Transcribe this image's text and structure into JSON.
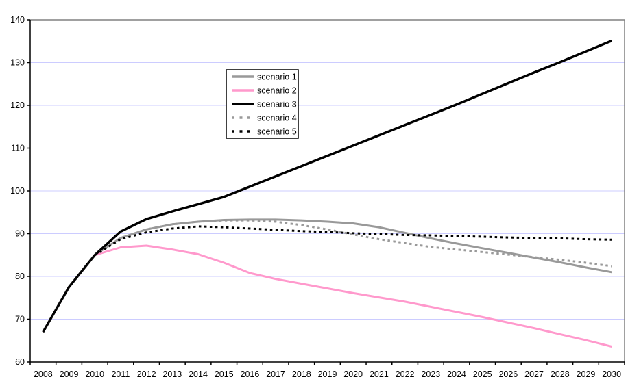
{
  "chart_data": {
    "type": "line",
    "title": "",
    "xlabel": "",
    "ylabel": "",
    "x_labels": [
      "2008",
      "2009",
      "2010",
      "2011",
      "2012",
      "2013",
      "2014",
      "2015",
      "2016",
      "2017",
      "2018",
      "2019",
      "2020",
      "2021",
      "2022",
      "2023",
      "2024",
      "2025",
      "2026",
      "2027",
      "2028",
      "2029",
      "2030"
    ],
    "ylim": [
      60,
      140
    ],
    "ytick_step": 10,
    "grid": "horizontal-only",
    "legend_position": "upper-left-center",
    "series": [
      {
        "name": "scenario 1",
        "color": "#999999",
        "style": "solid",
        "width": 3,
        "values": [
          67,
          77.5,
          85,
          89,
          91,
          92.2,
          92.8,
          93.2,
          93.3,
          93.3,
          93.1,
          92.8,
          92.4,
          91.5,
          90.2,
          88.9,
          87.7,
          86.6,
          85.5,
          84.4,
          83.3,
          82.1,
          81
        ]
      },
      {
        "name": "scenario 2",
        "color": "#ff99cc",
        "style": "solid",
        "width": 3,
        "values": [
          67,
          77.5,
          85,
          86.8,
          87.2,
          86.3,
          85.2,
          83.2,
          80.8,
          79.4,
          78.3,
          77.2,
          76.1,
          75.1,
          74.1,
          72.9,
          71.7,
          70.5,
          69.2,
          67.9,
          66.5,
          65.1,
          63.6
        ]
      },
      {
        "name": "scenario 3",
        "color": "#000000",
        "style": "solid",
        "width": 3.5,
        "values": [
          67,
          77.5,
          85,
          90.5,
          93.4,
          95.2,
          96.9,
          98.6,
          101,
          103.4,
          105.8,
          108.2,
          110.6,
          113,
          115.4,
          117.8,
          120.2,
          122.7,
          125.2,
          127.7,
          130.1,
          132.6,
          135.1
        ]
      },
      {
        "name": "scenario 4",
        "color": "#999999",
        "style": "dotted",
        "width": 3,
        "values": [
          67,
          77.5,
          85,
          89,
          91,
          92.2,
          92.8,
          93.1,
          93.1,
          92.8,
          92,
          91,
          89.8,
          88.7,
          87.8,
          86.9,
          86.3,
          85.7,
          85.1,
          84.5,
          83.9,
          83.2,
          82.4
        ]
      },
      {
        "name": "scenario 5",
        "color": "#000000",
        "style": "dotted",
        "width": 3,
        "values": [
          67,
          77.5,
          85,
          88.7,
          90.3,
          91.2,
          91.7,
          91.5,
          91.2,
          90.9,
          90.6,
          90.4,
          90.1,
          89.9,
          89.7,
          89.6,
          89.4,
          89.3,
          89.1,
          89,
          88.9,
          88.7,
          88.6
        ]
      }
    ],
    "colors": {
      "background": "#ffffff",
      "gridline": "#ccccff",
      "plot_border": "#808080",
      "axis": "#000000",
      "legend_border": "#000000",
      "legend_background": "#ffffff",
      "tick_label": "#000000"
    }
  }
}
